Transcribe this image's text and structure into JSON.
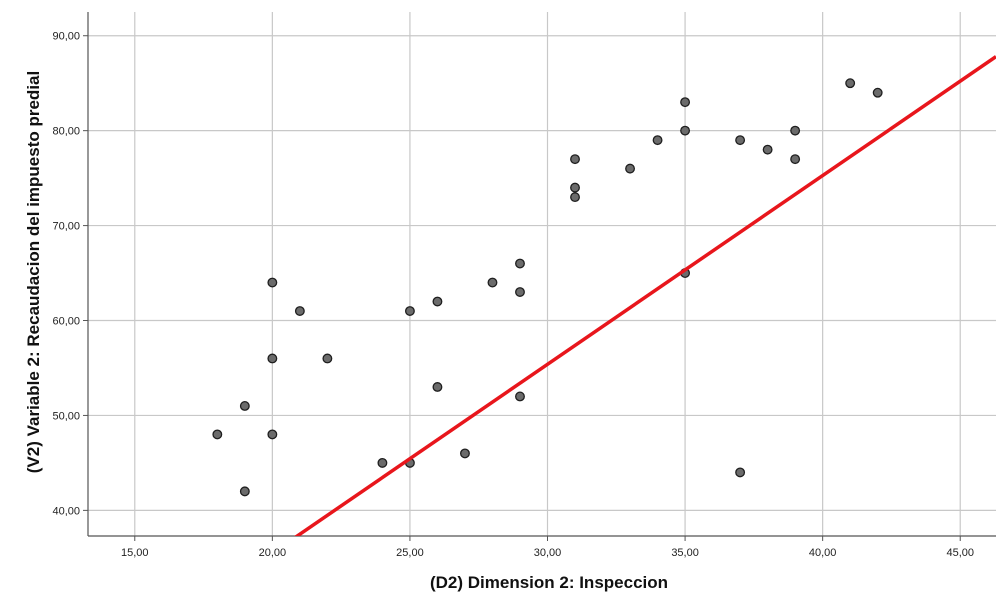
{
  "chart_data": {
    "type": "scatter",
    "title": "",
    "xlabel": "(D2) Dimension 2: Inspeccion",
    "ylabel": "(V2) Variable 2: Recaudacion del impuesto predial",
    "xlim": [
      13.3,
      46.3
    ],
    "ylim": [
      37.3,
      92.5
    ],
    "x_ticks": [
      15,
      20,
      25,
      30,
      35,
      40,
      45
    ],
    "y_ticks": [
      40,
      50,
      60,
      70,
      80,
      90
    ],
    "x_tick_labels": [
      "15,00",
      "20,00",
      "25,00",
      "30,00",
      "35,00",
      "40,00",
      "45,00"
    ],
    "y_tick_labels": [
      "40,00",
      "50,00",
      "60,00",
      "70,00",
      "80,00",
      "90,00"
    ],
    "grid": true,
    "legend": "none",
    "points": [
      {
        "x": 18,
        "y": 48
      },
      {
        "x": 19,
        "y": 51
      },
      {
        "x": 19,
        "y": 42
      },
      {
        "x": 20,
        "y": 64
      },
      {
        "x": 20,
        "y": 56
      },
      {
        "x": 20,
        "y": 48
      },
      {
        "x": 21,
        "y": 61
      },
      {
        "x": 22,
        "y": 56
      },
      {
        "x": 24,
        "y": 45
      },
      {
        "x": 25,
        "y": 61
      },
      {
        "x": 25,
        "y": 45
      },
      {
        "x": 26,
        "y": 62
      },
      {
        "x": 26,
        "y": 53
      },
      {
        "x": 27,
        "y": 46
      },
      {
        "x": 28,
        "y": 64
      },
      {
        "x": 29,
        "y": 66
      },
      {
        "x": 29,
        "y": 63
      },
      {
        "x": 29,
        "y": 52
      },
      {
        "x": 31,
        "y": 77
      },
      {
        "x": 31,
        "y": 74
      },
      {
        "x": 31,
        "y": 73
      },
      {
        "x": 33,
        "y": 76
      },
      {
        "x": 34,
        "y": 79
      },
      {
        "x": 35,
        "y": 83
      },
      {
        "x": 35,
        "y": 80
      },
      {
        "x": 35,
        "y": 65
      },
      {
        "x": 37,
        "y": 79
      },
      {
        "x": 37,
        "y": 44
      },
      {
        "x": 38,
        "y": 78
      },
      {
        "x": 39,
        "y": 80
      },
      {
        "x": 39,
        "y": 77
      },
      {
        "x": 41,
        "y": 85
      },
      {
        "x": 42,
        "y": 84
      }
    ],
    "fit_line": {
      "color": "#e8161c",
      "points": [
        [
          20.1,
          35.7
        ],
        [
          46.3,
          87.8
        ]
      ]
    },
    "colors": {
      "point_fill": "#6b6b6b",
      "point_stroke": "#1e1e1e",
      "grid": "#c8c8c8",
      "axis": "#555555"
    }
  }
}
